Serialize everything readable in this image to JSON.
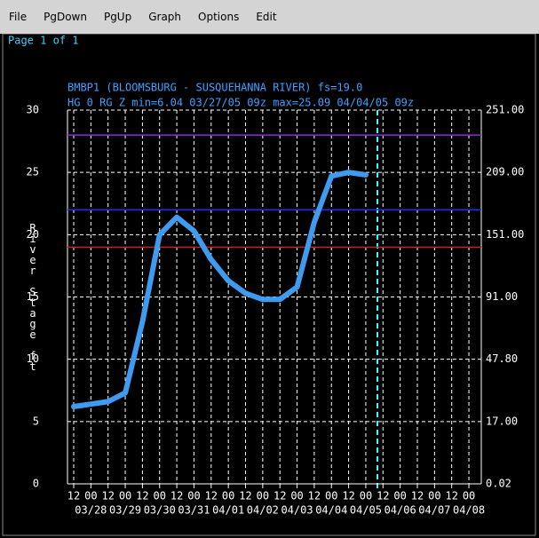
{
  "menu": [
    "File",
    "PgDown",
    "PgUp",
    "Graph",
    "Options",
    "Edit"
  ],
  "page_label": "Page 1 of 1",
  "chart_data": {
    "type": "line",
    "title": "BMBP1 (BLOOMSBURG - SUSQUEHANNA RIVER) fs=19.0",
    "subtitle": "HG 0 RG Z min=6.04 03/27/05 09z max=25.09 04/04/05 09z",
    "y_label": "River Stage ft",
    "categories": [
      "12",
      "00",
      "12",
      "00",
      "12",
      "00",
      "12",
      "00",
      "12",
      "00",
      "12",
      "00",
      "12",
      "00",
      "12",
      "00",
      "12",
      "00",
      "12",
      "00",
      "12",
      "00",
      "12",
      "00"
    ],
    "date_labels": [
      null,
      "03/28",
      null,
      "03/29",
      null,
      "03/30",
      null,
      "03/31",
      null,
      "04/01",
      null,
      "04/02",
      null,
      "04/03",
      null,
      "04/04",
      null,
      "04/05",
      null,
      "04/06",
      null,
      "04/07",
      null,
      "04/08"
    ],
    "series": [
      {
        "color": "#3d9cf0",
        "values": [
          6.2,
          6.4,
          6.6,
          7.3,
          13,
          20,
          21.4,
          20.3,
          18,
          16.3,
          15.3,
          14.8,
          14.8,
          15.8,
          21,
          24.7,
          25,
          24.8,
          null,
          null,
          null,
          null,
          null,
          null
        ]
      }
    ],
    "ylim": [
      0,
      30
    ],
    "yticks": [
      0,
      5,
      10,
      15,
      20,
      25,
      30
    ],
    "y2_tick_labels": [
      "0.02",
      "17.00",
      "47.80",
      "91.00",
      "151.00",
      "209.00",
      "251.00"
    ],
    "thresholds": [
      {
        "value": 28,
        "color": "#8a2be2"
      },
      {
        "value": 22,
        "color": "#1e2cff"
      },
      {
        "value": 19,
        "color": "#c81e1e"
      }
    ],
    "grid": true
  }
}
